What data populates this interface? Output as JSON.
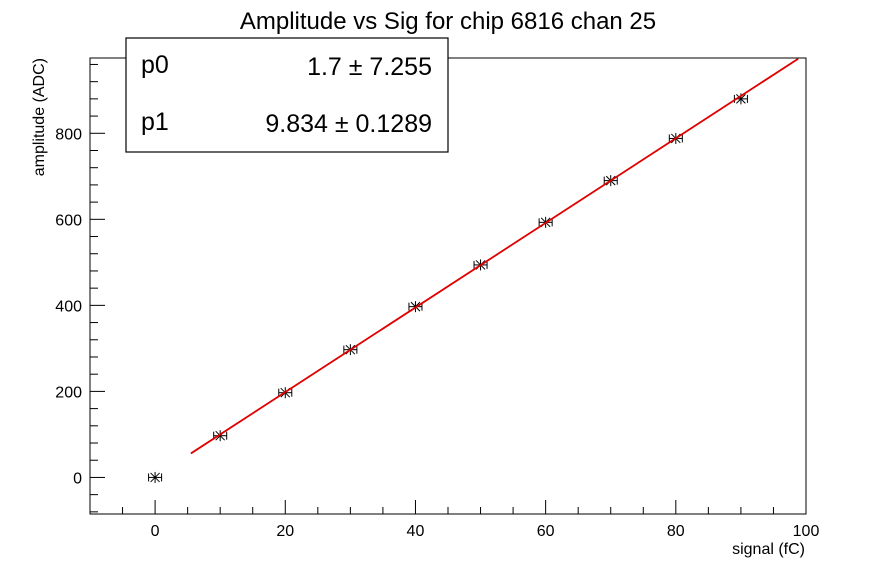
{
  "chart_data": {
    "type": "scatter",
    "title": "Amplitude vs Sig for chip 6816 chan 25",
    "xlabel": "signal (fC)",
    "ylabel": "amplitude (ADC)",
    "xlim": [
      -10,
      100
    ],
    "ylim": [
      -85,
      975
    ],
    "x_ticks": [
      0,
      20,
      40,
      60,
      80,
      100
    ],
    "y_ticks": [
      0,
      200,
      400,
      600,
      800
    ],
    "grid": false,
    "series": [
      {
        "points": [
          {
            "x": 0,
            "y": 0,
            "xerr": 1
          },
          {
            "x": 10,
            "y": 97,
            "xerr": 1
          },
          {
            "x": 20,
            "y": 197,
            "xerr": 1
          },
          {
            "x": 30,
            "y": 297,
            "xerr": 1
          },
          {
            "x": 40,
            "y": 397,
            "xerr": 1
          },
          {
            "x": 50,
            "y": 494,
            "xerr": 1
          },
          {
            "x": 60,
            "y": 593,
            "xerr": 1
          },
          {
            "x": 70,
            "y": 690,
            "xerr": 1
          },
          {
            "x": 80,
            "y": 788,
            "xerr": 1
          },
          {
            "x": 90,
            "y": 880,
            "xerr": 1
          }
        ],
        "color": "#000000",
        "marker": "asterisk"
      }
    ],
    "fit": {
      "p0": 1.7,
      "p1": 9.834,
      "x_range": [
        5.5,
        98.8
      ],
      "color": "#e00000"
    },
    "stats_box": {
      "placement": "top-left",
      "rows": [
        {
          "name": "p0",
          "value": "1.7 ± 7.255"
        },
        {
          "name": "p1",
          "value": "9.834 ± 0.1289"
        }
      ]
    }
  }
}
